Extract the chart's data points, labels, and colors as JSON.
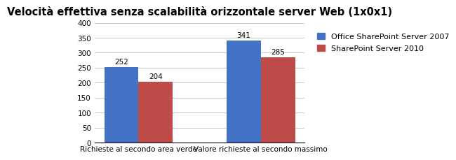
{
  "title": "Velocità effettiva senza scalabilità orizzontale server Web (1x0x1)",
  "categories": [
    "Richieste al secondo area verde",
    "Valore richieste al secondo massimo"
  ],
  "series": [
    {
      "label": "Office SharePoint Server 2007",
      "values": [
        252,
        341
      ],
      "color": "#4472C4"
    },
    {
      "label": "SharePoint Server 2010",
      "values": [
        204,
        285
      ],
      "color": "#BE4B48"
    }
  ],
  "ylim": [
    0,
    400
  ],
  "yticks": [
    0,
    50,
    100,
    150,
    200,
    250,
    300,
    350,
    400
  ],
  "bar_width": 0.28,
  "title_fontsize": 10.5,
  "tick_fontsize": 7.5,
  "label_fontsize": 8,
  "legend_fontsize": 8,
  "value_fontsize": 7.5,
  "background_color": "#FFFFFF",
  "grid_color": "#C8C8C8"
}
